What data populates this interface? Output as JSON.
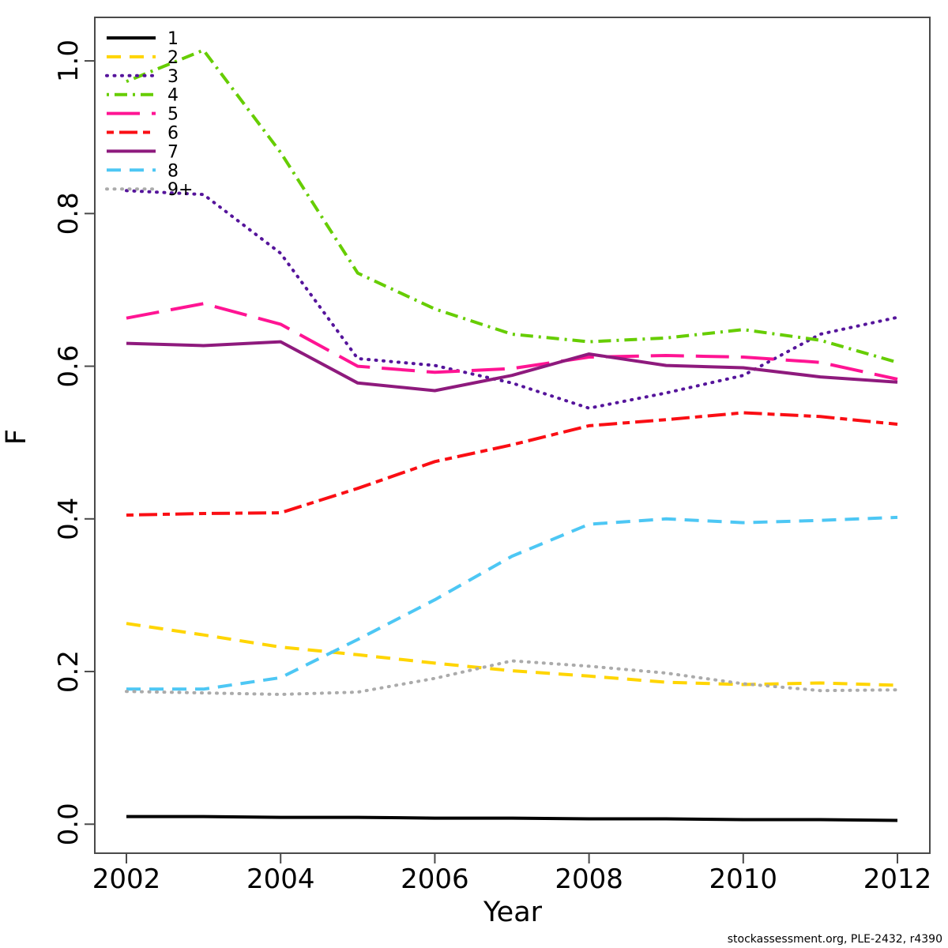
{
  "footer": {
    "text": "stockassessment.org, PLE-2432, r4390"
  },
  "chart_data": {
    "type": "line",
    "title": "",
    "xlabel": "Year",
    "ylabel": "F",
    "grid": false,
    "legend_position": "top-left",
    "xlim": [
      2001.59,
      2012.42
    ],
    "ylim": [
      -0.038,
      1.057
    ],
    "x_ticks": [
      "2002",
      "2004",
      "2006",
      "2008",
      "2010",
      "2012"
    ],
    "x_tick_values": [
      2002,
      2004,
      2006,
      2008,
      2010,
      2012
    ],
    "y_ticks": [
      "0.0",
      "0.2",
      "0.4",
      "0.6",
      "0.8",
      "1.0"
    ],
    "y_tick_values": [
      0.0,
      0.2,
      0.4,
      0.6,
      0.8,
      1.0
    ],
    "x": [
      2002,
      2003,
      2004,
      2005,
      2006,
      2007,
      2008,
      2009,
      2010,
      2011,
      2012
    ],
    "series": [
      {
        "name": "1",
        "color": "#000000",
        "linestyle": "solid",
        "values": [
          0.01,
          0.01,
          0.009,
          0.009,
          0.008,
          0.008,
          0.007,
          0.007,
          0.006,
          0.006,
          0.005
        ]
      },
      {
        "name": "2",
        "color": "#FFD500",
        "linestyle": "dashed",
        "values": [
          0.263,
          0.248,
          0.232,
          0.222,
          0.211,
          0.201,
          0.194,
          0.186,
          0.183,
          0.185,
          0.182
        ]
      },
      {
        "name": "3",
        "color": "#55149B",
        "linestyle": "dotted",
        "values": [
          0.83,
          0.825,
          0.748,
          0.61,
          0.601,
          0.578,
          0.545,
          0.565,
          0.588,
          0.642,
          0.664
        ]
      },
      {
        "name": "4",
        "color": "#66CD00",
        "linestyle": "dotdash",
        "values": [
          0.973,
          1.014,
          0.88,
          0.722,
          0.675,
          0.642,
          0.632,
          0.637,
          0.648,
          0.634,
          0.605
        ]
      },
      {
        "name": "5",
        "color": "#FF1493",
        "linestyle": "longdash",
        "values": [
          0.663,
          0.682,
          0.655,
          0.6,
          0.592,
          0.597,
          0.612,
          0.614,
          0.612,
          0.605,
          0.583
        ]
      },
      {
        "name": "6",
        "color": "#FA0E14",
        "linestyle": "twodash",
        "values": [
          0.405,
          0.407,
          0.408,
          0.44,
          0.475,
          0.497,
          0.522,
          0.53,
          0.539,
          0.534,
          0.524
        ]
      },
      {
        "name": "7",
        "color": "#8E1A7D",
        "linestyle": "solid",
        "values": [
          0.63,
          0.627,
          0.632,
          0.578,
          0.568,
          0.588,
          0.616,
          0.601,
          0.598,
          0.586,
          0.579
        ]
      },
      {
        "name": "8",
        "color": "#4DC7F4",
        "linestyle": "dashed",
        "values": [
          0.177,
          0.177,
          0.192,
          0.242,
          0.294,
          0.351,
          0.393,
          0.4,
          0.395,
          0.398,
          0.402
        ]
      },
      {
        "name": "9+",
        "color": "#ABABAB",
        "linestyle": "dotted",
        "values": [
          0.174,
          0.172,
          0.17,
          0.173,
          0.191,
          0.214,
          0.207,
          0.198,
          0.184,
          0.175,
          0.176
        ]
      }
    ]
  }
}
